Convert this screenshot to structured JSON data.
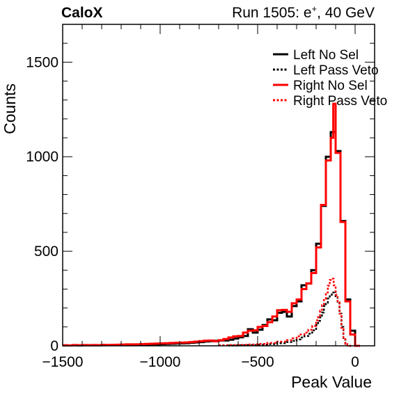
{
  "header": {
    "experiment": "CaloX",
    "run_prefix": "Run 1505: e",
    "run_sup": "+",
    "run_suffix": ", 40 GeV"
  },
  "chart_data": {
    "type": "step-histogram",
    "xlabel": "Peak Value",
    "ylabel": "Counts",
    "xlim": [
      -1500,
      100
    ],
    "ylim": [
      0,
      1700
    ],
    "x_ticks": [
      -1500,
      -1000,
      -500,
      0
    ],
    "x_tick_labels": [
      "−1500",
      "−1000",
      "−500",
      "0"
    ],
    "y_ticks": [
      0,
      500,
      1000,
      1500
    ],
    "y_tick_labels": [
      "0",
      "500",
      "1000",
      "1500"
    ],
    "grid": false,
    "legend_position": "top-right",
    "series": [
      {
        "name": "Left No Sel",
        "color": "#000000",
        "style": "solid",
        "bin_width": 25,
        "bins": [
          [
            -1500,
            2
          ],
          [
            -1475,
            2
          ],
          [
            -1450,
            3
          ],
          [
            -1425,
            2
          ],
          [
            -1400,
            3
          ],
          [
            -1375,
            3
          ],
          [
            -1350,
            3
          ],
          [
            -1325,
            3
          ],
          [
            -1300,
            4
          ],
          [
            -1275,
            4
          ],
          [
            -1250,
            4
          ],
          [
            -1225,
            5
          ],
          [
            -1200,
            5
          ],
          [
            -1175,
            6
          ],
          [
            -1150,
            6
          ],
          [
            -1125,
            6
          ],
          [
            -1100,
            7
          ],
          [
            -1075,
            7
          ],
          [
            -1050,
            8
          ],
          [
            -1025,
            8
          ],
          [
            -1000,
            9
          ],
          [
            -975,
            10
          ],
          [
            -950,
            11
          ],
          [
            -925,
            12
          ],
          [
            -900,
            13
          ],
          [
            -875,
            14
          ],
          [
            -850,
            16
          ],
          [
            -825,
            18
          ],
          [
            -800,
            20
          ],
          [
            -775,
            23
          ],
          [
            -750,
            25
          ],
          [
            -725,
            26
          ],
          [
            -700,
            28
          ],
          [
            -675,
            28
          ],
          [
            -650,
            32
          ],
          [
            -625,
            38
          ],
          [
            -600,
            45
          ],
          [
            -575,
            52
          ],
          [
            -550,
            88
          ],
          [
            -525,
            70
          ],
          [
            -500,
            85
          ],
          [
            -475,
            110
          ],
          [
            -450,
            140
          ],
          [
            -425,
            135
          ],
          [
            -400,
            175
          ],
          [
            -375,
            180
          ],
          [
            -350,
            155
          ],
          [
            -325,
            210
          ],
          [
            -300,
            235
          ],
          [
            -275,
            320
          ],
          [
            -250,
            330
          ],
          [
            -225,
            400
          ],
          [
            -200,
            540
          ],
          [
            -175,
            740
          ],
          [
            -150,
            1000
          ],
          [
            -125,
            1130
          ],
          [
            -100,
            1030
          ],
          [
            -75,
            660
          ],
          [
            -50,
            245
          ],
          [
            -25,
            80
          ],
          [
            0,
            0
          ]
        ]
      },
      {
        "name": "Left Pass Veto",
        "color": "#000000",
        "style": "dashed",
        "bin_width": 10,
        "bins": [
          [
            -650,
            2
          ],
          [
            -600,
            3
          ],
          [
            -550,
            4
          ],
          [
            -500,
            6
          ],
          [
            -450,
            9
          ],
          [
            -400,
            14
          ],
          [
            -350,
            20
          ],
          [
            -320,
            26
          ],
          [
            -300,
            34
          ],
          [
            -280,
            44
          ],
          [
            -260,
            52
          ],
          [
            -240,
            64
          ],
          [
            -220,
            82
          ],
          [
            -200,
            110
          ],
          [
            -190,
            132
          ],
          [
            -180,
            150
          ],
          [
            -170,
            176
          ],
          [
            -160,
            210
          ],
          [
            -150,
            228
          ],
          [
            -140,
            250
          ],
          [
            -130,
            270
          ],
          [
            -120,
            282
          ],
          [
            -110,
            288
          ],
          [
            -100,
            262
          ],
          [
            -90,
            225
          ],
          [
            -80,
            170
          ],
          [
            -70,
            100
          ],
          [
            -60,
            42
          ],
          [
            -50,
            12
          ],
          [
            -40,
            2
          ],
          [
            -30,
            0
          ]
        ]
      },
      {
        "name": "Right No Sel",
        "color": "#ff0000",
        "style": "solid",
        "bin_width": 25,
        "bins": [
          [
            -1500,
            3
          ],
          [
            -1475,
            2
          ],
          [
            -1450,
            4
          ],
          [
            -1425,
            3
          ],
          [
            -1400,
            4
          ],
          [
            -1375,
            3
          ],
          [
            -1350,
            4
          ],
          [
            -1325,
            3
          ],
          [
            -1300,
            5
          ],
          [
            -1275,
            4
          ],
          [
            -1250,
            5
          ],
          [
            -1225,
            6
          ],
          [
            -1200,
            7
          ],
          [
            -1175,
            8
          ],
          [
            -1150,
            8
          ],
          [
            -1125,
            8
          ],
          [
            -1100,
            9
          ],
          [
            -1075,
            10
          ],
          [
            -1050,
            11
          ],
          [
            -1025,
            12
          ],
          [
            -1000,
            13
          ],
          [
            -975,
            14
          ],
          [
            -950,
            15
          ],
          [
            -925,
            16
          ],
          [
            -900,
            17
          ],
          [
            -875,
            18
          ],
          [
            -850,
            20
          ],
          [
            -825,
            22
          ],
          [
            -800,
            25
          ],
          [
            -775,
            27
          ],
          [
            -750,
            28
          ],
          [
            -725,
            24
          ],
          [
            -700,
            30
          ],
          [
            -675,
            36
          ],
          [
            -650,
            44
          ],
          [
            -625,
            50
          ],
          [
            -600,
            52
          ],
          [
            -575,
            70
          ],
          [
            -550,
            80
          ],
          [
            -525,
            82
          ],
          [
            -500,
            100
          ],
          [
            -475,
            105
          ],
          [
            -450,
            125
          ],
          [
            -425,
            155
          ],
          [
            -400,
            188
          ],
          [
            -375,
            190
          ],
          [
            -350,
            180
          ],
          [
            -325,
            225
          ],
          [
            -300,
            245
          ],
          [
            -275,
            300
          ],
          [
            -250,
            330
          ],
          [
            -225,
            385
          ],
          [
            -200,
            520
          ],
          [
            -175,
            745
          ],
          [
            -150,
            980
          ],
          [
            -125,
            1100
          ],
          [
            -112,
            1280
          ],
          [
            -100,
            1020
          ],
          [
            -75,
            655
          ],
          [
            -50,
            235
          ],
          [
            -25,
            60
          ],
          [
            0,
            0
          ]
        ]
      },
      {
        "name": "Right Pass Veto",
        "color": "#ff0000",
        "style": "dashed",
        "bin_width": 10,
        "bins": [
          [
            -700,
            3
          ],
          [
            -650,
            4
          ],
          [
            -600,
            5
          ],
          [
            -550,
            7
          ],
          [
            -500,
            10
          ],
          [
            -450,
            15
          ],
          [
            -400,
            22
          ],
          [
            -350,
            30
          ],
          [
            -320,
            40
          ],
          [
            -300,
            50
          ],
          [
            -280,
            60
          ],
          [
            -260,
            70
          ],
          [
            -240,
            85
          ],
          [
            -220,
            105
          ],
          [
            -200,
            135
          ],
          [
            -190,
            160
          ],
          [
            -180,
            185
          ],
          [
            -170,
            215
          ],
          [
            -160,
            248
          ],
          [
            -150,
            282
          ],
          [
            -140,
            318
          ],
          [
            -130,
            348
          ],
          [
            -120,
            355
          ],
          [
            -110,
            320
          ],
          [
            -100,
            270
          ],
          [
            -90,
            230
          ],
          [
            -80,
            170
          ],
          [
            -70,
            90
          ],
          [
            -60,
            35
          ],
          [
            -50,
            10
          ],
          [
            -40,
            2
          ],
          [
            -30,
            0
          ]
        ]
      }
    ]
  }
}
